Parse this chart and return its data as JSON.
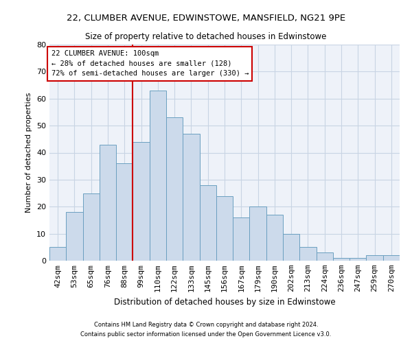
{
  "title1": "22, CLUMBER AVENUE, EDWINSTOWE, MANSFIELD, NG21 9PE",
  "title2": "Size of property relative to detached houses in Edwinstowe",
  "xlabel": "Distribution of detached houses by size in Edwinstowe",
  "ylabel": "Number of detached properties",
  "footnote1": "Contains HM Land Registry data © Crown copyright and database right 2024.",
  "footnote2": "Contains public sector information licensed under the Open Government Licence v3.0.",
  "bar_color": "#ccdaeb",
  "bar_edge_color": "#6a9fc0",
  "grid_color": "#c8d4e4",
  "background_color": "#eef2f9",
  "annotation_box_color": "#cc0000",
  "vline_color": "#cc0000",
  "categories": [
    "42sqm",
    "53sqm",
    "65sqm",
    "76sqm",
    "88sqm",
    "99sqm",
    "110sqm",
    "122sqm",
    "133sqm",
    "145sqm",
    "156sqm",
    "167sqm",
    "179sqm",
    "190sqm",
    "202sqm",
    "213sqm",
    "224sqm",
    "236sqm",
    "247sqm",
    "259sqm",
    "270sqm"
  ],
  "values": [
    5,
    18,
    25,
    43,
    36,
    44,
    63,
    53,
    47,
    28,
    24,
    16,
    20,
    17,
    10,
    5,
    3,
    1,
    1,
    2,
    2
  ],
  "vline_index": 5,
  "annotation_text": "22 CLUMBER AVENUE: 100sqm\n← 28% of detached houses are smaller (128)\n72% of semi-detached houses are larger (330) →",
  "ylim": [
    0,
    80
  ],
  "yticks": [
    0,
    10,
    20,
    30,
    40,
    50,
    60,
    70,
    80
  ]
}
